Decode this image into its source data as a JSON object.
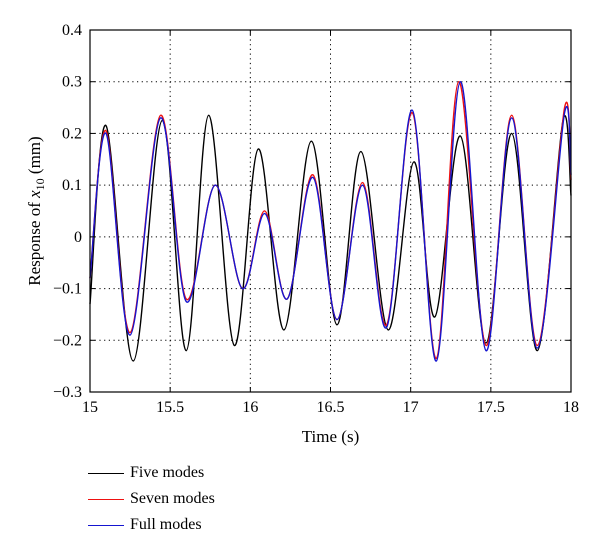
{
  "chart_data": {
    "type": "line",
    "title": "",
    "xlabel": "Time (s)",
    "ylabel_prefix": "Response of ",
    "ylabel_var": "x",
    "ylabel_sub": "10",
    "ylabel_suffix": " (mm)",
    "xlim": [
      15,
      18
    ],
    "ylim": [
      -0.3,
      0.4
    ],
    "xticks": [
      "15",
      "15.5",
      "16",
      "16.5",
      "17",
      "17.5",
      "18"
    ],
    "yticks": [
      "0.4",
      "0.3",
      "0.2",
      "0.1",
      "0",
      "−0.1",
      "−0.2",
      "−0.3"
    ],
    "grid": true,
    "grid_style": "dotted",
    "legend_position": "below",
    "series": [
      {
        "name": "Five modes",
        "color": "#000000",
        "x": [
          15.0,
          15.1,
          15.27,
          15.45,
          15.6,
          15.74,
          15.9,
          16.05,
          16.21,
          16.38,
          16.54,
          16.69,
          16.86,
          17.02,
          17.15,
          17.31,
          17.47,
          17.63,
          17.79,
          17.95,
          18.0
        ],
        "y": [
          -0.13,
          0.215,
          -0.24,
          0.225,
          -0.22,
          0.235,
          -0.21,
          0.17,
          -0.18,
          0.185,
          -0.17,
          0.165,
          -0.18,
          0.145,
          -0.155,
          0.195,
          -0.205,
          0.2,
          -0.22,
          0.225,
          0.08
        ]
      },
      {
        "name": "Seven modes",
        "color": "#ee1111",
        "x": [
          15.0,
          15.1,
          15.25,
          15.44,
          15.6,
          15.78,
          15.95,
          16.09,
          16.23,
          16.39,
          16.54,
          16.7,
          16.85,
          17.01,
          17.16,
          17.3,
          17.47,
          17.63,
          17.79,
          17.96,
          18.0
        ],
        "y": [
          -0.08,
          0.205,
          -0.185,
          0.235,
          -0.12,
          0.1,
          -0.1,
          0.05,
          -0.12,
          0.12,
          -0.16,
          0.105,
          -0.17,
          0.24,
          -0.235,
          0.3,
          -0.21,
          0.235,
          -0.21,
          0.25,
          0.11
        ]
      },
      {
        "name": "Full modes",
        "color": "#1515d0",
        "x": [
          15.0,
          15.1,
          15.25,
          15.44,
          15.6,
          15.78,
          15.95,
          16.09,
          16.23,
          16.39,
          16.54,
          16.7,
          16.85,
          17.01,
          17.16,
          17.31,
          17.47,
          17.63,
          17.79,
          17.96,
          18.0
        ],
        "y": [
          -0.08,
          0.2,
          -0.19,
          0.23,
          -0.125,
          0.1,
          -0.1,
          0.045,
          -0.12,
          0.115,
          -0.16,
          0.1,
          -0.175,
          0.245,
          -0.24,
          0.3,
          -0.22,
          0.23,
          -0.215,
          0.24,
          0.12
        ]
      }
    ]
  }
}
